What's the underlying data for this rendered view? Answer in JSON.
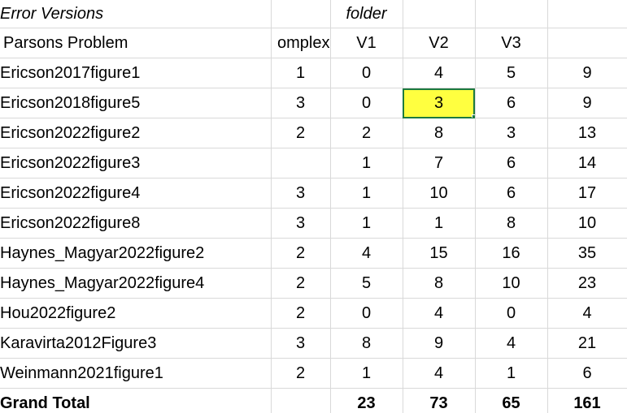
{
  "header": {
    "error_versions": "Error Versions",
    "folder": "folder",
    "parsons_problem": "Parsons Problem",
    "complex": "omplex",
    "v1": "V1",
    "v2": "V2",
    "v3": "V3",
    "total": ""
  },
  "rows": [
    {
      "name": "Ericson2017figure1",
      "complex": "1",
      "v1": "0",
      "v2": "4",
      "v3": "5",
      "total": "9"
    },
    {
      "name": "Ericson2018figure5",
      "complex": "3",
      "v1": "0",
      "v2": "3",
      "v3": "6",
      "total": "9"
    },
    {
      "name": "Ericson2022figure2",
      "complex": "2",
      "v1": "2",
      "v2": "8",
      "v3": "3",
      "total": "13"
    },
    {
      "name": "Ericson2022figure3",
      "complex": "",
      "v1": "1",
      "v2": "7",
      "v3": "6",
      "total": "14"
    },
    {
      "name": "Ericson2022figure4",
      "complex": "3",
      "v1": "1",
      "v2": "10",
      "v3": "6",
      "total": "17"
    },
    {
      "name": "Ericson2022figure8",
      "complex": "3",
      "v1": "1",
      "v2": "1",
      "v3": "8",
      "total": "10"
    },
    {
      "name": "Haynes_Magyar2022figure2",
      "complex": "2",
      "v1": "4",
      "v2": "15",
      "v3": "16",
      "total": "35"
    },
    {
      "name": "Haynes_Magyar2022figure4",
      "complex": "2",
      "v1": "5",
      "v2": "8",
      "v3": "10",
      "total": "23"
    },
    {
      "name": "Hou2022figure2",
      "complex": "2",
      "v1": "0",
      "v2": "4",
      "v3": "0",
      "total": "4"
    },
    {
      "name": "Karavirta2012Figure3",
      "complex": "3",
      "v1": "8",
      "v2": "9",
      "v3": "4",
      "total": "21"
    },
    {
      "name": "Weinmann2021figure1",
      "complex": "2",
      "v1": "1",
      "v2": "4",
      "v3": "1",
      "total": "6"
    }
  ],
  "grand_total": {
    "label": "Grand Total",
    "complex": "",
    "v1": "23",
    "v2": "73",
    "v3": "65",
    "total": "161"
  },
  "selection": {
    "row_index": 1,
    "column": "v2",
    "highlight_color": "#ffff40",
    "border_color": "#1d7a3f"
  }
}
